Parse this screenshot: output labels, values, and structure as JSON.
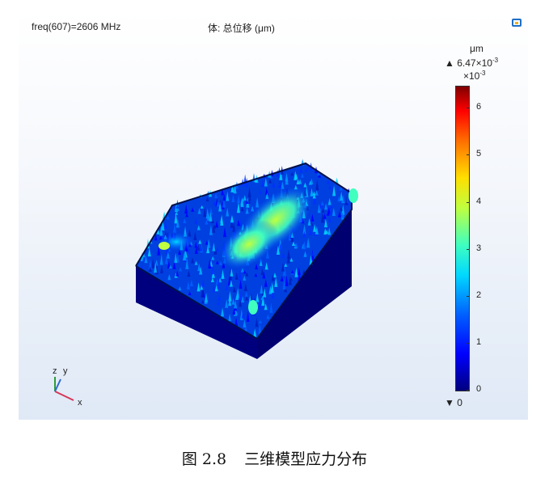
{
  "figure": {
    "freq_label": "freq(607)=2606 MHz",
    "title": "体: 总位移 (μm)",
    "axis_triad": {
      "z": "z",
      "y": "y",
      "x": "x"
    },
    "colorbar": {
      "unit": "μm",
      "max_label": "6.47×10",
      "max_exp": "-3",
      "exp_prefix": "×10",
      "exp_value": "-3",
      "min_label": "0",
      "max_value": 6.47,
      "ticks": [
        "6",
        "5",
        "4",
        "3",
        "2",
        "1",
        "0"
      ],
      "tick_values": [
        6,
        5,
        4,
        3,
        2,
        1,
        0
      ],
      "colormap": "rainbow"
    },
    "colors": {
      "base": "#00007f",
      "accent": "#ff0000"
    }
  },
  "caption": {
    "number": "图 2.8",
    "text": "三维模型应力分布"
  }
}
